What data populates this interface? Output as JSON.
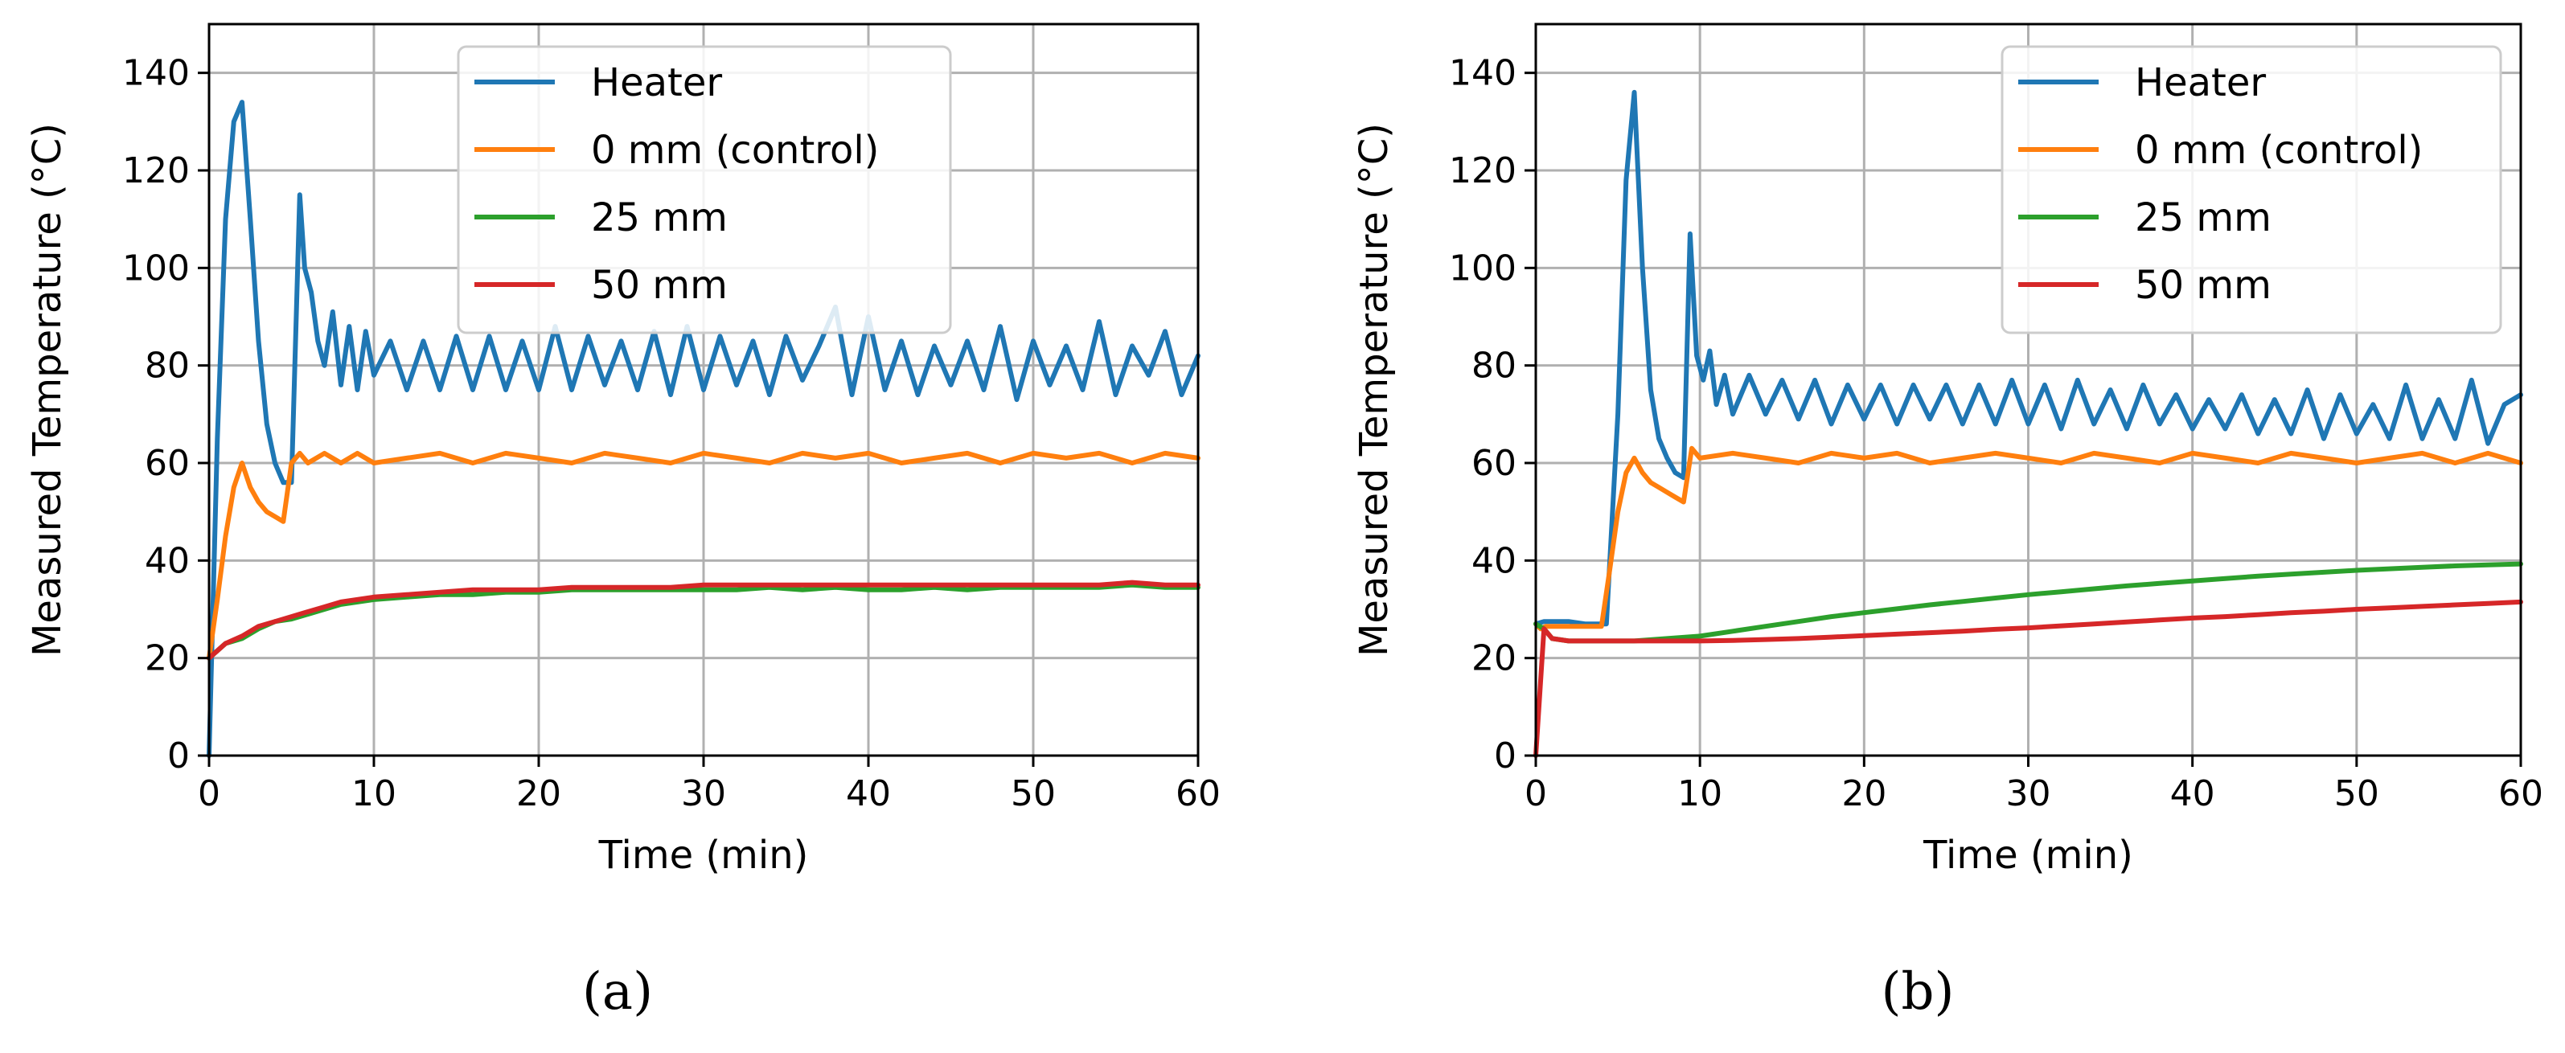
{
  "chart_data": [
    {
      "type": "line",
      "panel_label": "(a)",
      "xlabel": "Time (min)",
      "ylabel": "Measured Temperature (°C)",
      "xlim": [
        0,
        60
      ],
      "ylim": [
        0,
        150
      ],
      "xticks": [
        0,
        10,
        20,
        30,
        40,
        50,
        60
      ],
      "yticks": [
        0,
        20,
        40,
        60,
        80,
        100,
        120,
        140
      ],
      "grid": true,
      "legend_position": "top-right",
      "series": [
        {
          "name": "Heater",
          "color": "#1f77b4",
          "x": [
            0,
            0.5,
            1,
            1.5,
            2,
            2.5,
            3,
            3.5,
            4,
            4.5,
            5,
            5.5,
            5.8,
            6.2,
            6.6,
            7,
            7.5,
            8,
            8.5,
            9,
            9.5,
            10,
            11,
            12,
            13,
            14,
            15,
            16,
            17,
            18,
            19,
            20,
            21,
            22,
            23,
            24,
            25,
            26,
            27,
            28,
            29,
            30,
            31,
            32,
            33,
            34,
            35,
            36,
            37,
            38,
            39,
            40,
            41,
            42,
            43,
            44,
            45,
            46,
            47,
            48,
            49,
            50,
            51,
            52,
            53,
            54,
            55,
            56,
            57,
            58,
            59,
            60
          ],
          "values": [
            0,
            65,
            110,
            130,
            134,
            110,
            85,
            68,
            60,
            56,
            56,
            115,
            100,
            95,
            85,
            80,
            91,
            76,
            88,
            75,
            87,
            78,
            85,
            75,
            85,
            75,
            86,
            75,
            86,
            75,
            85,
            75,
            88,
            75,
            86,
            76,
            85,
            75,
            87,
            74,
            88,
            75,
            86,
            76,
            85,
            74,
            86,
            77,
            84,
            92,
            74,
            90,
            75,
            85,
            74,
            84,
            76,
            85,
            75,
            88,
            73,
            85,
            76,
            84,
            75,
            89,
            74,
            84,
            78,
            87,
            74,
            82
          ]
        },
        {
          "name": "0 mm (control)",
          "color": "#ff7f0e",
          "x": [
            0,
            0.5,
            1,
            1.5,
            2,
            2.5,
            3,
            3.5,
            4,
            4.5,
            5,
            5.5,
            6,
            7,
            8,
            9,
            10,
            12,
            14,
            16,
            18,
            20,
            22,
            24,
            26,
            28,
            30,
            32,
            34,
            36,
            38,
            40,
            42,
            44,
            46,
            48,
            50,
            52,
            54,
            56,
            58,
            60
          ],
          "values": [
            20,
            32,
            45,
            55,
            60,
            55,
            52,
            50,
            49,
            48,
            60,
            62,
            60,
            62,
            60,
            62,
            60,
            61,
            62,
            60,
            62,
            61,
            60,
            62,
            61,
            60,
            62,
            61,
            60,
            62,
            61,
            62,
            60,
            61,
            62,
            60,
            62,
            61,
            62,
            60,
            62,
            61
          ]
        },
        {
          "name": "25 mm",
          "color": "#2ca02c",
          "x": [
            0,
            1,
            2,
            3,
            4,
            5,
            6,
            7,
            8,
            9,
            10,
            12,
            14,
            16,
            18,
            20,
            22,
            24,
            26,
            28,
            30,
            32,
            34,
            36,
            38,
            40,
            42,
            44,
            46,
            48,
            50,
            52,
            54,
            56,
            58,
            60
          ],
          "values": [
            20,
            23,
            24,
            26,
            27.5,
            28,
            29,
            30,
            31,
            31.5,
            32,
            32.5,
            33,
            33,
            33.5,
            33.5,
            34,
            34,
            34,
            34,
            34,
            34,
            34.5,
            34,
            34.5,
            34,
            34,
            34.5,
            34,
            34.5,
            34.5,
            34.5,
            34.5,
            35,
            34.5,
            34.5
          ]
        },
        {
          "name": "50 mm",
          "color": "#d62728",
          "x": [
            0,
            1,
            2,
            3,
            4,
            5,
            6,
            7,
            8,
            9,
            10,
            12,
            14,
            16,
            18,
            20,
            22,
            24,
            26,
            28,
            30,
            32,
            34,
            36,
            38,
            40,
            42,
            44,
            46,
            48,
            50,
            52,
            54,
            56,
            58,
            60
          ],
          "values": [
            20,
            23,
            24.5,
            26.5,
            27.5,
            28.5,
            29.5,
            30.5,
            31.5,
            32,
            32.5,
            33,
            33.5,
            34,
            34,
            34,
            34.5,
            34.5,
            34.5,
            34.5,
            35,
            35,
            35,
            35,
            35,
            35,
            35,
            35,
            35,
            35,
            35,
            35,
            35,
            35.5,
            35,
            35
          ]
        }
      ]
    },
    {
      "type": "line",
      "panel_label": "(b)",
      "xlabel": "Time (min)",
      "ylabel": "Measured Temperature (°C)",
      "xlim": [
        0,
        60
      ],
      "ylim": [
        0,
        150
      ],
      "xticks": [
        0,
        10,
        20,
        30,
        40,
        50,
        60
      ],
      "yticks": [
        0,
        20,
        40,
        60,
        80,
        100,
        120,
        140
      ],
      "grid": true,
      "legend_position": "top-right",
      "series": [
        {
          "name": "Heater",
          "color": "#1f77b4",
          "x": [
            0,
            0.5,
            1,
            2,
            3,
            4,
            4.3,
            5,
            5.5,
            6,
            6.5,
            7,
            7.5,
            8,
            8.5,
            9,
            9.4,
            9.8,
            10.2,
            10.6,
            11,
            11.5,
            12,
            13,
            14,
            15,
            16,
            17,
            18,
            19,
            20,
            21,
            22,
            23,
            24,
            25,
            26,
            27,
            28,
            29,
            30,
            31,
            32,
            33,
            34,
            35,
            36,
            37,
            38,
            39,
            40,
            41,
            42,
            43,
            44,
            45,
            46,
            47,
            48,
            49,
            50,
            51,
            52,
            53,
            54,
            55,
            56,
            57,
            58,
            59,
            60
          ],
          "values": [
            27,
            27.5,
            27.5,
            27.5,
            27,
            27,
            27,
            70,
            118,
            136,
            100,
            75,
            65,
            61,
            58,
            57,
            107,
            82,
            77,
            83,
            72,
            78,
            70,
            78,
            70,
            77,
            69,
            77,
            68,
            76,
            69,
            76,
            68,
            76,
            69,
            76,
            68,
            76,
            68,
            77,
            68,
            76,
            67,
            77,
            68,
            75,
            67,
            76,
            68,
            74,
            67,
            73,
            67,
            74,
            66,
            73,
            66,
            75,
            65,
            74,
            66,
            72,
            65,
            76,
            65,
            73,
            65,
            77,
            64,
            72,
            74
          ]
        },
        {
          "name": "0 mm (control)",
          "color": "#ff7f0e",
          "x": [
            0,
            0.3,
            0.6,
            1,
            2,
            3,
            4,
            4.5,
            5,
            5.5,
            6,
            6.5,
            7,
            7.5,
            8,
            8.5,
            9,
            9.5,
            10,
            12,
            14,
            16,
            18,
            20,
            22,
            24,
            26,
            28,
            30,
            32,
            34,
            36,
            38,
            40,
            42,
            44,
            46,
            48,
            50,
            52,
            54,
            56,
            58,
            60
          ],
          "values": [
            27,
            26,
            26.5,
            26.5,
            26.5,
            26.5,
            26.5,
            38,
            50,
            58,
            61,
            58,
            56,
            55,
            54,
            53,
            52,
            63,
            61,
            62,
            61,
            60,
            62,
            61,
            62,
            60,
            61,
            62,
            61,
            60,
            62,
            61,
            60,
            62,
            61,
            60,
            62,
            61,
            60,
            61,
            62,
            60,
            62,
            60
          ]
        },
        {
          "name": "25 mm",
          "color": "#2ca02c",
          "x": [
            0,
            0.5,
            1,
            2,
            4,
            6,
            8,
            10,
            12,
            14,
            16,
            18,
            20,
            22,
            24,
            26,
            28,
            30,
            32,
            34,
            36,
            38,
            40,
            42,
            44,
            46,
            48,
            50,
            52,
            54,
            56,
            58,
            60
          ],
          "values": [
            27,
            26,
            24,
            23.5,
            23.5,
            23.5,
            24,
            24.5,
            25.5,
            26.5,
            27.5,
            28.5,
            29.3,
            30.1,
            30.9,
            31.6,
            32.3,
            33,
            33.6,
            34.2,
            34.8,
            35.3,
            35.8,
            36.3,
            36.8,
            37.2,
            37.6,
            38,
            38.3,
            38.6,
            38.9,
            39.1,
            39.3
          ]
        },
        {
          "name": "50 mm",
          "color": "#d62728",
          "x": [
            0,
            0.5,
            1,
            2,
            4,
            6,
            8,
            10,
            12,
            14,
            16,
            18,
            20,
            22,
            24,
            26,
            28,
            30,
            32,
            34,
            36,
            38,
            40,
            42,
            44,
            46,
            48,
            50,
            52,
            54,
            56,
            58,
            60
          ],
          "values": [
            0,
            26,
            24,
            23.5,
            23.5,
            23.5,
            23.5,
            23.5,
            23.6,
            23.8,
            24,
            24.3,
            24.6,
            24.9,
            25.2,
            25.5,
            25.9,
            26.2,
            26.6,
            27,
            27.4,
            27.8,
            28.2,
            28.5,
            28.9,
            29.3,
            29.6,
            30,
            30.3,
            30.6,
            30.9,
            31.2,
            31.5
          ]
        }
      ]
    }
  ]
}
